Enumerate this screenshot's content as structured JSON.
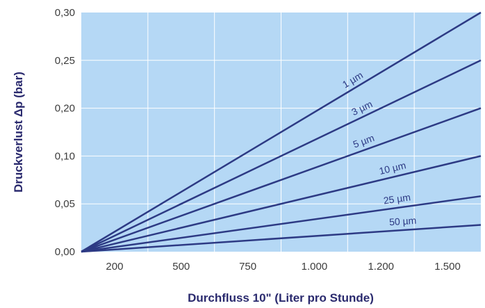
{
  "chart_data": {
    "type": "line",
    "xlabel": "Durchfluss 10\" (Liter pro Stunde)",
    "ylabel": "Druckverlust Δp (bar)",
    "x_ticks": [
      "200",
      "500",
      "750",
      "1.000",
      "1.200",
      "1.500"
    ],
    "y_ticks": [
      "0,00",
      "0,05",
      "0,10",
      "0,20",
      "0,25",
      "0,30"
    ],
    "y_scale": "categorical-ticks",
    "grid": true,
    "colors": {
      "background": "#b5d8f5",
      "grid": "#ffffff",
      "line": "#2d3a84"
    },
    "series": [
      {
        "name": "1 µm",
        "end_tick_value": 0.3,
        "label": "1 µm"
      },
      {
        "name": "3 µm",
        "end_tick_value": 0.25,
        "label": "3 µm"
      },
      {
        "name": "5 µm",
        "end_tick_value": 0.2,
        "label": "5 µm"
      },
      {
        "name": "10 µm",
        "end_tick_value": 0.1,
        "label": "10 µm"
      },
      {
        "name": "25 µm",
        "end_tick_value": 0.058,
        "label": "25 µm"
      },
      {
        "name": "50 µm",
        "end_tick_value": 0.028,
        "label": "50 µm"
      }
    ]
  }
}
